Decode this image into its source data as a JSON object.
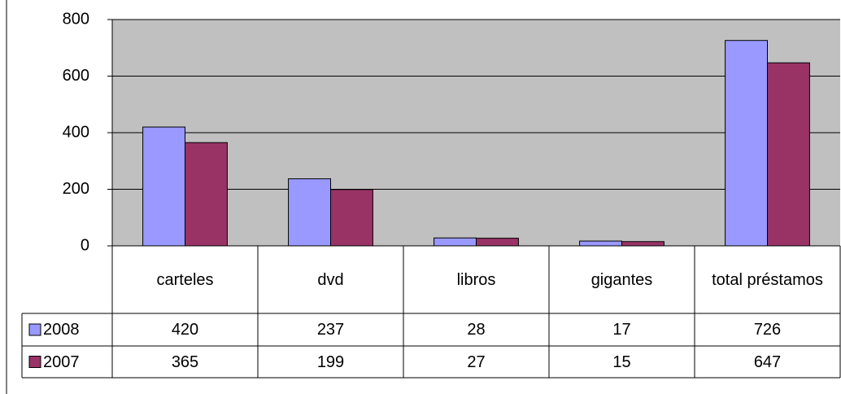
{
  "chart_data": {
    "type": "bar",
    "categories": [
      "carteles",
      "dvd",
      "libros",
      "gigantes",
      "total préstamos"
    ],
    "series": [
      {
        "name": "2008",
        "color": "#9999ff",
        "values": [
          420,
          237,
          28,
          17,
          726
        ]
      },
      {
        "name": "2007",
        "color": "#993366",
        "values": [
          365,
          199,
          27,
          15,
          647
        ]
      }
    ],
    "ylim": [
      0,
      800
    ],
    "yticks": [
      0,
      200,
      400,
      600,
      800
    ],
    "grid": true,
    "plot_background": "#c0c0c0",
    "data_table": true
  }
}
